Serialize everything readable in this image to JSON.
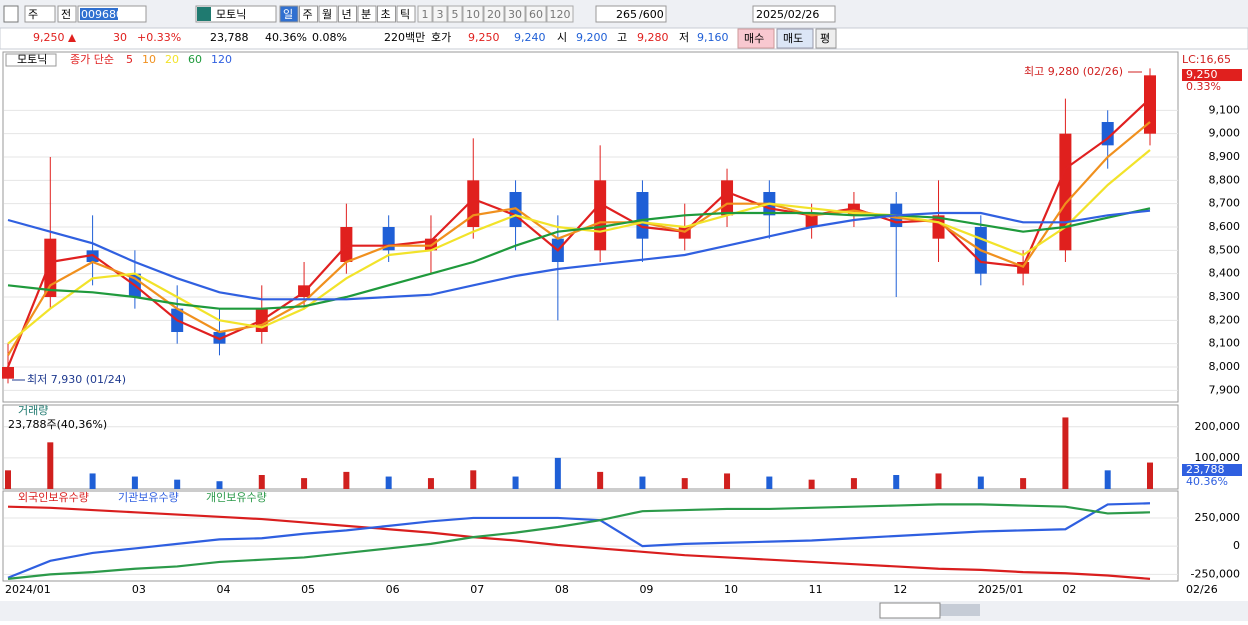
{
  "toolbar": {
    "market": "주",
    "mode": "전",
    "code": "009680",
    "name": "모토닉",
    "periods": [
      "일",
      "주",
      "월",
      "년",
      "분",
      "초",
      "틱"
    ],
    "intervals": [
      "1",
      "3",
      "5",
      "10",
      "20",
      "30",
      "60",
      "120"
    ],
    "count": "265",
    "max": "/600",
    "date": "2025/02/26"
  },
  "info": {
    "price": "9,250",
    "change": "30",
    "rate": "+0.33%",
    "volume": "23,788",
    "ratio": "40.36%",
    "turnover": "0.08%",
    "amount": "220백만",
    "quote_label": "호가",
    "ask": "9,250",
    "bid": "9,240",
    "open_label": "시",
    "open": "9,200",
    "high_label": "고",
    "high": "9,280",
    "low_label": "저",
    "low": "9,160",
    "buy": "매수",
    "sell": "매도",
    "avg": "평"
  },
  "chart_data": [
    {
      "type": "candlestick",
      "legend_title": "모토닉",
      "legend_label": "종가 단순",
      "categories": [
        "2024/01",
        null,
        null,
        "03",
        null,
        "04",
        null,
        "05",
        null,
        "06",
        null,
        "07",
        null,
        "08",
        null,
        "09",
        null,
        "10",
        null,
        "11",
        null,
        "12",
        null,
        "2025/01",
        null,
        "02",
        null,
        "02/26"
      ],
      "open": [
        7950,
        8300,
        8500,
        8400,
        8250,
        8150,
        8150,
        8300,
        8450,
        8600,
        8500,
        8600,
        8750,
        8550,
        8500,
        8750,
        8550,
        8650,
        8750,
        8600,
        8650,
        8700,
        8550,
        8600,
        8400,
        8500,
        9050,
        9000
      ],
      "high": [
        8100,
        8900,
        8650,
        8500,
        8350,
        8250,
        8350,
        8450,
        8700,
        8650,
        8650,
        8980,
        8800,
        8650,
        8950,
        8800,
        8700,
        8850,
        8800,
        8700,
        8750,
        8750,
        8800,
        8650,
        8500,
        9150,
        9100,
        9280
      ],
      "low": [
        7930,
        8250,
        8350,
        8250,
        8100,
        8050,
        8100,
        8250,
        8400,
        8450,
        8400,
        8550,
        8500,
        8200,
        8450,
        8450,
        8500,
        8600,
        8550,
        8550,
        8600,
        8300,
        8450,
        8350,
        8350,
        8450,
        8850,
        8950
      ],
      "close": [
        8000,
        8550,
        8450,
        8300,
        8150,
        8100,
        8250,
        8350,
        8600,
        8500,
        8550,
        8800,
        8600,
        8450,
        8800,
        8550,
        8600,
        8800,
        8650,
        8650,
        8700,
        8600,
        8650,
        8400,
        8450,
        9000,
        8950,
        9250
      ],
      "up_color": "#e0201e",
      "down_color": "#1f5fd6",
      "series": [
        {
          "name": "5",
          "color": "#e02020",
          "values": [
            8000,
            8450,
            8480,
            8350,
            8200,
            8120,
            8200,
            8320,
            8520,
            8520,
            8540,
            8720,
            8650,
            8500,
            8700,
            8600,
            8580,
            8750,
            8680,
            8650,
            8680,
            8620,
            8630,
            8450,
            8430,
            8850,
            8980,
            9150
          ]
        },
        {
          "name": "10",
          "color": "#f0901e",
          "values": [
            8050,
            8350,
            8450,
            8380,
            8250,
            8150,
            8180,
            8280,
            8450,
            8520,
            8520,
            8650,
            8680,
            8550,
            8620,
            8620,
            8580,
            8700,
            8700,
            8650,
            8670,
            8640,
            8620,
            8500,
            8430,
            8700,
            8900,
            9050
          ]
        },
        {
          "name": "20",
          "color": "#f2e32a",
          "values": [
            8100,
            8250,
            8380,
            8400,
            8300,
            8200,
            8170,
            8250,
            8380,
            8480,
            8500,
            8580,
            8650,
            8600,
            8580,
            8620,
            8600,
            8650,
            8700,
            8680,
            8660,
            8650,
            8620,
            8550,
            8480,
            8600,
            8780,
            8930
          ]
        },
        {
          "name": "60",
          "color": "#1f9a3c",
          "values": [
            8350,
            8330,
            8320,
            8300,
            8270,
            8250,
            8250,
            8260,
            8300,
            8350,
            8400,
            8450,
            8520,
            8580,
            8600,
            8630,
            8650,
            8660,
            8660,
            8660,
            8650,
            8650,
            8640,
            8610,
            8580,
            8600,
            8640,
            8680
          ]
        },
        {
          "name": "120",
          "color": "#3060e0",
          "values": [
            8630,
            8580,
            8530,
            8450,
            8380,
            8320,
            8290,
            8290,
            8290,
            8300,
            8310,
            8350,
            8390,
            8420,
            8440,
            8460,
            8480,
            8520,
            8560,
            8600,
            8630,
            8650,
            8660,
            8660,
            8620,
            8620,
            8650,
            8670
          ]
        }
      ],
      "ylim": [
        7850,
        9290
      ],
      "yticks": [
        {
          "value": 7900,
          "label": "7,900"
        },
        {
          "value": 8000,
          "label": "8,000"
        },
        {
          "value": 8100,
          "label": "8,100"
        },
        {
          "value": 8200,
          "label": "8,200"
        },
        {
          "value": 8300,
          "label": "8,300"
        },
        {
          "value": 8400,
          "label": "8,400"
        },
        {
          "value": 8500,
          "label": "8,500"
        },
        {
          "value": 8600,
          "label": "8,600"
        },
        {
          "value": 8700,
          "label": "8,700"
        },
        {
          "value": 8800,
          "label": "8,800"
        },
        {
          "value": 8900,
          "label": "8,900"
        },
        {
          "value": 9000,
          "label": "9,000"
        },
        {
          "value": 9100,
          "label": "9,100"
        }
      ],
      "annotations": [
        "최고 9,280 (02/26)",
        "최저 7,930 (01/24)"
      ],
      "side_labels": [
        "LC:16,65",
        "9,250",
        "0.33%"
      ]
    },
    {
      "type": "bar",
      "title": "거래량",
      "subtitle": "23,788주(40,36%)",
      "values": [
        60000,
        150000,
        50000,
        40000,
        30000,
        25000,
        45000,
        35000,
        55000,
        40000,
        35000,
        60000,
        40000,
        100000,
        55000,
        40000,
        35000,
        50000,
        40000,
        30000,
        35000,
        45000,
        50000,
        40000,
        35000,
        230000,
        60000,
        85000
      ],
      "ylim": [
        0,
        270000
      ],
      "yticks": [
        {
          "value": 100000,
          "label": "100,000"
        },
        {
          "value": 200000,
          "label": "200,000"
        }
      ],
      "side_labels": [
        "23,788",
        "40.36%"
      ]
    },
    {
      "type": "line",
      "series": [
        {
          "name": "외국인보유수량",
          "color": "#d91e1e",
          "values": [
            350000,
            340000,
            320000,
            300000,
            280000,
            260000,
            240000,
            210000,
            180000,
            150000,
            120000,
            80000,
            50000,
            10000,
            -20000,
            -50000,
            -80000,
            -100000,
            -120000,
            -140000,
            -160000,
            -180000,
            -200000,
            -210000,
            -230000,
            -240000,
            -260000,
            -290000
          ]
        },
        {
          "name": "기관보유수량",
          "color": "#2f5fe0",
          "values": [
            -280000,
            -130000,
            -60000,
            -20000,
            20000,
            60000,
            70000,
            110000,
            140000,
            180000,
            220000,
            250000,
            250000,
            250000,
            230000,
            0,
            20000,
            30000,
            40000,
            50000,
            70000,
            90000,
            110000,
            130000,
            140000,
            150000,
            370000,
            380000
          ]
        },
        {
          "name": "개인보유수량",
          "color": "#2c9a4a",
          "values": [
            -290000,
            -250000,
            -230000,
            -200000,
            -180000,
            -140000,
            -120000,
            -100000,
            -60000,
            -20000,
            20000,
            80000,
            120000,
            170000,
            230000,
            310000,
            320000,
            330000,
            330000,
            340000,
            350000,
            360000,
            370000,
            370000,
            360000,
            350000,
            290000,
            300000
          ]
        }
      ],
      "ylim": [
        -300000,
        480000
      ],
      "yticks": [
        {
          "value": -250000,
          "label": "-250,000"
        },
        0,
        {
          "value": 250000,
          "label": "250,000"
        }
      ]
    }
  ]
}
